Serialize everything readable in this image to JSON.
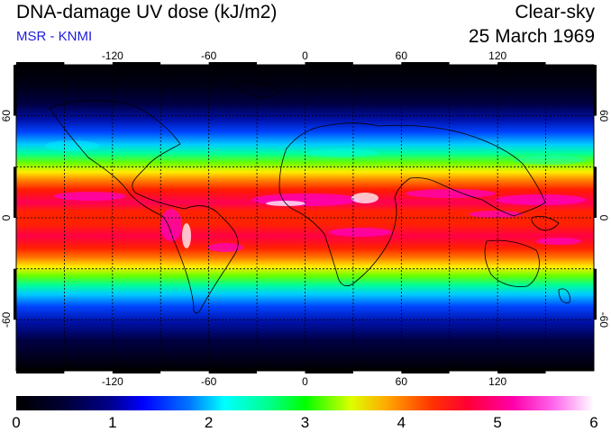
{
  "header": {
    "title": "DNA-damage UV dose (kJ/m2)",
    "subtitle": "MSR - KNMI",
    "condition": "Clear-sky",
    "date": "25 March 1969"
  },
  "map": {
    "lon_range": [
      -180,
      180
    ],
    "lat_range": [
      -90,
      90
    ],
    "lon_ticks": [
      -120,
      -60,
      0,
      60,
      120
    ],
    "lat_ticks": [
      -60,
      0,
      60
    ],
    "lon_tick_labels": [
      "-120",
      "-60",
      "0",
      "60",
      "120"
    ],
    "lat_tick_labels": [
      "-60",
      "0",
      "60"
    ],
    "grid_lons": [
      -150,
      -120,
      -90,
      -60,
      -30,
      0,
      30,
      60,
      90,
      120,
      150
    ],
    "grid_lats": [
      -60,
      -30,
      0,
      30,
      60
    ],
    "grid": true,
    "grid_style": "dashed",
    "frame_colors": [
      "#000000",
      "#ffffff"
    ],
    "background_color": "#000000"
  },
  "colorbar": {
    "range": [
      0,
      6
    ],
    "ticks": [
      "0",
      "1",
      "2",
      "3",
      "4",
      "5",
      "6"
    ],
    "colors": [
      "#000000",
      "#000066",
      "#0000ff",
      "#00ffff",
      "#00ff00",
      "#ffff00",
      "#ff8800",
      "#ff0000",
      "#ff00cc",
      "#ffffff"
    ]
  }
}
